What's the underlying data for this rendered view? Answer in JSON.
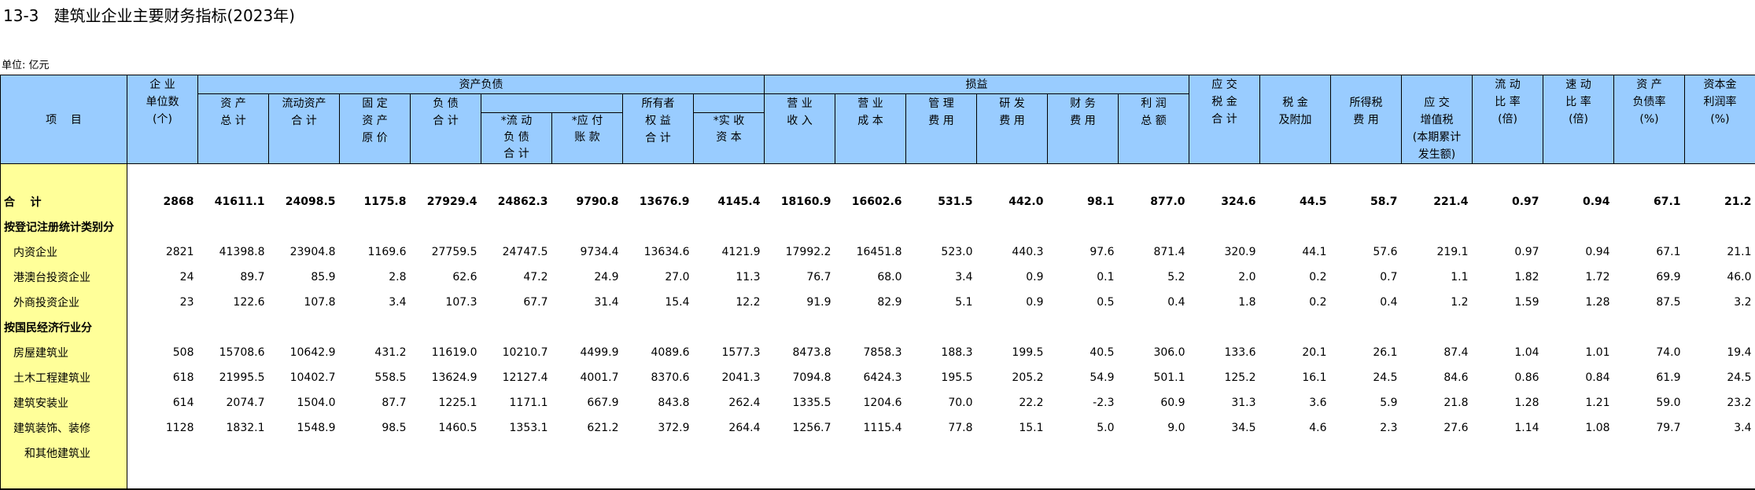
{
  "header": {
    "title": "13-3   建筑业企业主要财务指标(2023年)",
    "unit": "单位: 亿元",
    "item": "项    目",
    "groups": [
      "资产负债",
      "损益"
    ],
    "columns": [
      [
        "企 业",
        "单位数",
        "(个)"
      ],
      [
        "资 产",
        "总 计"
      ],
      [
        "流动资产",
        "合 计"
      ],
      [
        "固 定",
        "资 产",
        "原 价"
      ],
      [
        "负 债",
        "合 计"
      ],
      [
        "*流 动",
        "负 债",
        "合 计"
      ],
      [
        "*应 付",
        "账 款"
      ],
      [
        "所有者",
        "权 益",
        "合 计"
      ],
      [
        "*实 收",
        "资 本"
      ],
      [
        "营 业",
        "收 入"
      ],
      [
        "营 业",
        "成 本"
      ],
      [
        "管 理",
        "费 用"
      ],
      [
        "研 发",
        "费 用"
      ],
      [
        "财 务",
        "费 用"
      ],
      [
        "利 润",
        "总 额"
      ],
      [
        "应 交",
        "税 金",
        "合 计"
      ],
      [
        "税 金",
        "及附加"
      ],
      [
        "所得税",
        "费 用"
      ],
      [
        "应 交",
        "增值税",
        "(本期累计",
        "发生额)"
      ],
      [
        "流 动",
        "比 率",
        "(倍)"
      ],
      [
        "速 动",
        "比 率",
        "(倍)"
      ],
      [
        "资 产",
        "负债率",
        "(%)"
      ],
      [
        "资本金",
        "利润率",
        "(%)"
      ]
    ]
  },
  "rows": [
    {
      "label": "合    计",
      "values": [
        "2868",
        "41611.1",
        "24098.5",
        "1175.8",
        "27929.4",
        "24862.3",
        "9790.8",
        "13676.9",
        "4145.4",
        "18160.9",
        "16602.6",
        "531.5",
        "442.0",
        "98.1",
        "877.0",
        "324.6",
        "44.5",
        "58.7",
        "221.4",
        "0.97",
        "0.94",
        "67.1",
        "21.2"
      ]
    },
    {
      "label": "按登记注册统计类别分"
    },
    {
      "label": "内资企业",
      "values": [
        "2821",
        "41398.8",
        "23904.8",
        "1169.6",
        "27759.5",
        "24747.5",
        "9734.4",
        "13634.6",
        "4121.9",
        "17992.2",
        "16451.8",
        "523.0",
        "440.3",
        "97.6",
        "871.4",
        "320.9",
        "44.1",
        "57.6",
        "219.1",
        "0.97",
        "0.94",
        "67.1",
        "21.1"
      ]
    },
    {
      "label": "港澳台投资企业",
      "values": [
        "24",
        "89.7",
        "85.9",
        "2.8",
        "62.6",
        "47.2",
        "24.9",
        "27.0",
        "11.3",
        "76.7",
        "68.0",
        "3.4",
        "0.9",
        "0.1",
        "5.2",
        "2.0",
        "0.2",
        "0.7",
        "1.1",
        "1.82",
        "1.72",
        "69.9",
        "46.0"
      ]
    },
    {
      "label": "外商投资企业",
      "values": [
        "23",
        "122.6",
        "107.8",
        "3.4",
        "107.3",
        "67.7",
        "31.4",
        "15.4",
        "12.2",
        "91.9",
        "82.9",
        "5.1",
        "0.9",
        "0.5",
        "0.4",
        "1.8",
        "0.2",
        "0.4",
        "1.2",
        "1.59",
        "1.28",
        "87.5",
        "3.2"
      ]
    },
    {
      "label": "按国民经济行业分"
    },
    {
      "label": "房屋建筑业",
      "values": [
        "508",
        "15708.6",
        "10642.9",
        "431.2",
        "11619.0",
        "10210.7",
        "4499.9",
        "4089.6",
        "1577.3",
        "8473.8",
        "7858.3",
        "188.3",
        "199.5",
        "40.5",
        "306.0",
        "133.6",
        "20.1",
        "26.1",
        "87.4",
        "1.04",
        "1.01",
        "74.0",
        "19.4"
      ]
    },
    {
      "label": "土木工程建筑业",
      "values": [
        "618",
        "21995.5",
        "10402.7",
        "558.5",
        "13624.9",
        "12127.4",
        "4001.7",
        "8370.6",
        "2041.3",
        "7094.8",
        "6424.3",
        "195.5",
        "205.2",
        "54.9",
        "501.1",
        "125.2",
        "16.1",
        "24.5",
        "84.6",
        "0.86",
        "0.84",
        "61.9",
        "24.5"
      ]
    },
    {
      "label": "建筑安装业",
      "values": [
        "614",
        "2074.7",
        "1504.0",
        "87.7",
        "1225.1",
        "1171.1",
        "667.9",
        "843.8",
        "262.4",
        "1335.5",
        "1204.6",
        "70.0",
        "22.2",
        "-2.3",
        "60.9",
        "31.3",
        "3.6",
        "5.9",
        "21.8",
        "1.28",
        "1.21",
        "59.0",
        "23.2"
      ]
    },
    {
      "label": "建筑装饰、装修",
      "values": [
        "1128",
        "1832.1",
        "1548.9",
        "98.5",
        "1460.5",
        "1353.1",
        "621.2",
        "372.9",
        "264.4",
        "1256.7",
        "1115.4",
        "77.8",
        "15.1",
        "5.0",
        "9.0",
        "34.5",
        "4.6",
        "2.3",
        "27.6",
        "1.14",
        "1.08",
        "79.7",
        "3.4"
      ]
    },
    {
      "label": "和其他建筑业"
    }
  ]
}
